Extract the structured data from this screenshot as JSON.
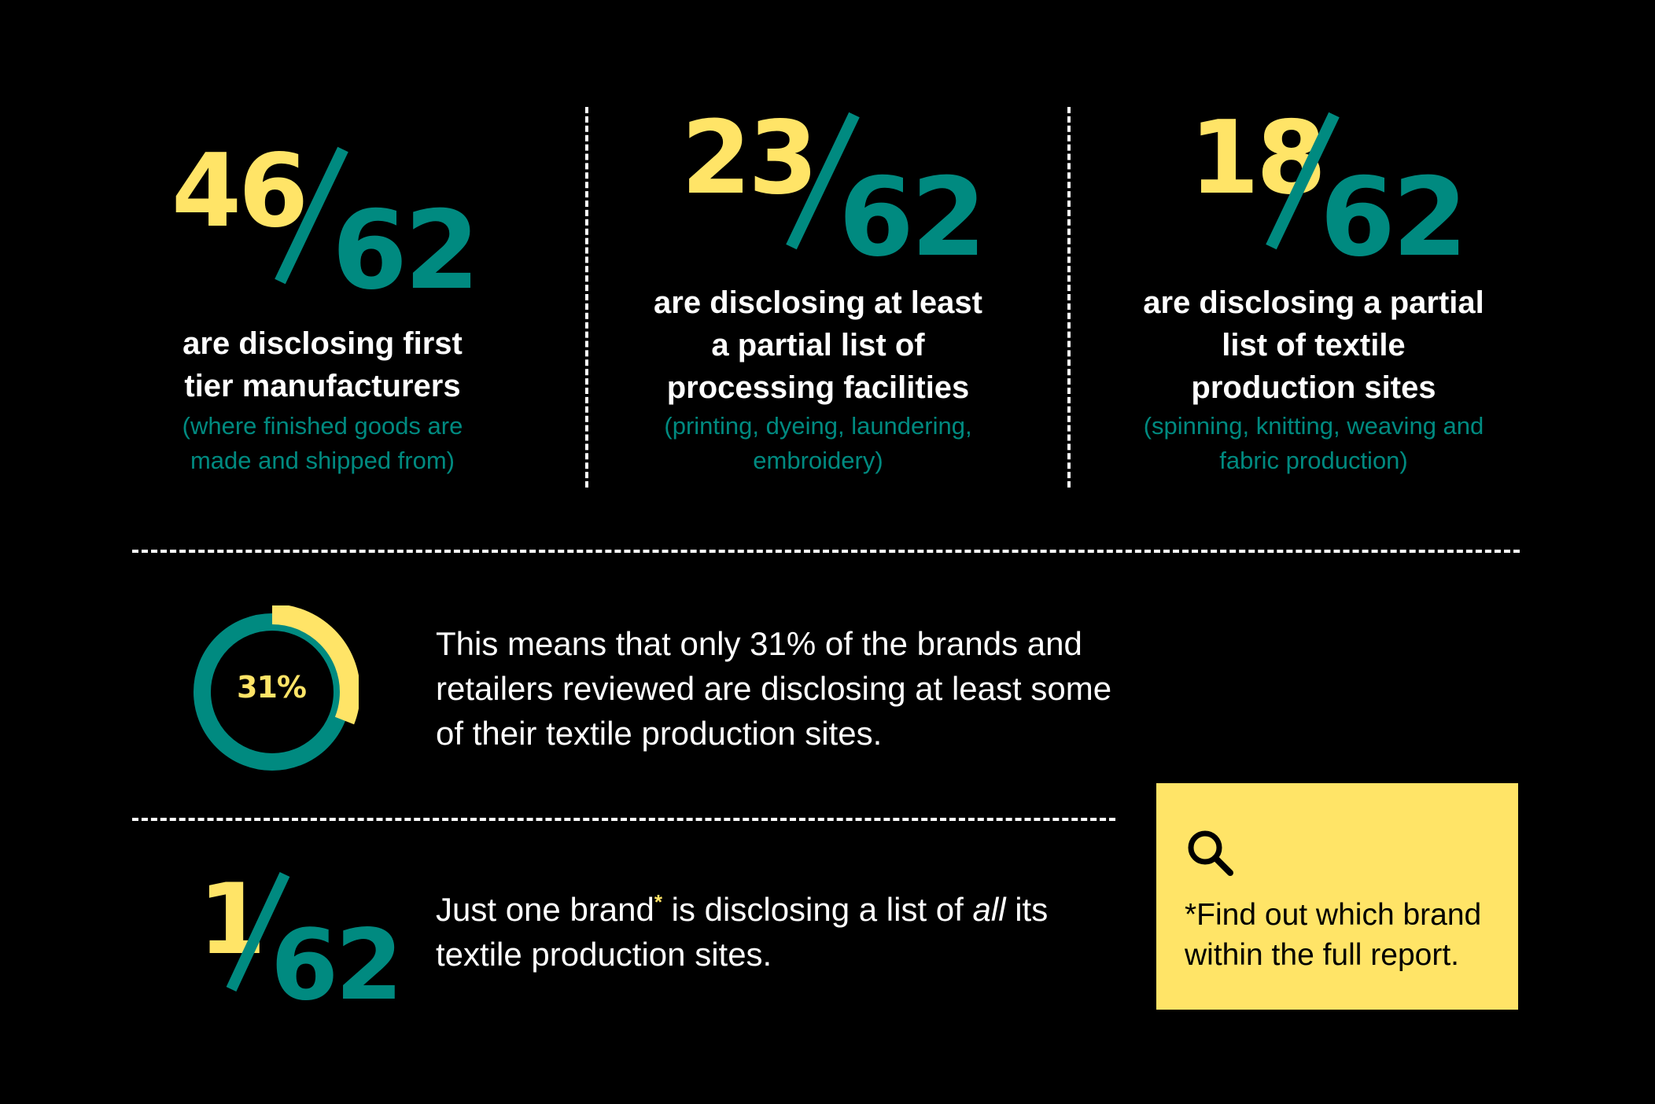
{
  "stats": [
    {
      "numerator": "46",
      "denominator": "62",
      "headline": "are disclosing first tier manufacturers",
      "detail": "(where finished goods are made and shipped from)"
    },
    {
      "numerator": "23",
      "denominator": "62",
      "headline": "are disclosing at least a partial list of processing facilities",
      "detail": "(printing, dyeing, laundering, embroidery)"
    },
    {
      "numerator": "18",
      "denominator": "62",
      "headline": "are disclosing a partial list of textile production sites",
      "detail": "(spinning, knitting, weaving and fabric production)"
    }
  ],
  "summary": {
    "percent_label": "31%",
    "percent_value": 0.31,
    "text": "This means that only 31% of the brands and retailers reviewed are disclosing at least some of their textile production sites."
  },
  "one_brand": {
    "numerator": "1",
    "denominator": "62",
    "text_before": "Just one brand",
    "asterisk": "*",
    "text_middle": " is disclosing a list of ",
    "text_emphasis": "all",
    "text_after": " its textile production sites."
  },
  "callout": {
    "icon": "magnifier-icon",
    "text": "*Find out which brand within the full report."
  },
  "colors": {
    "background": "#000000",
    "accent_yellow": "#FFE467",
    "accent_teal": "#008A80",
    "text": "#FFFFFF"
  }
}
